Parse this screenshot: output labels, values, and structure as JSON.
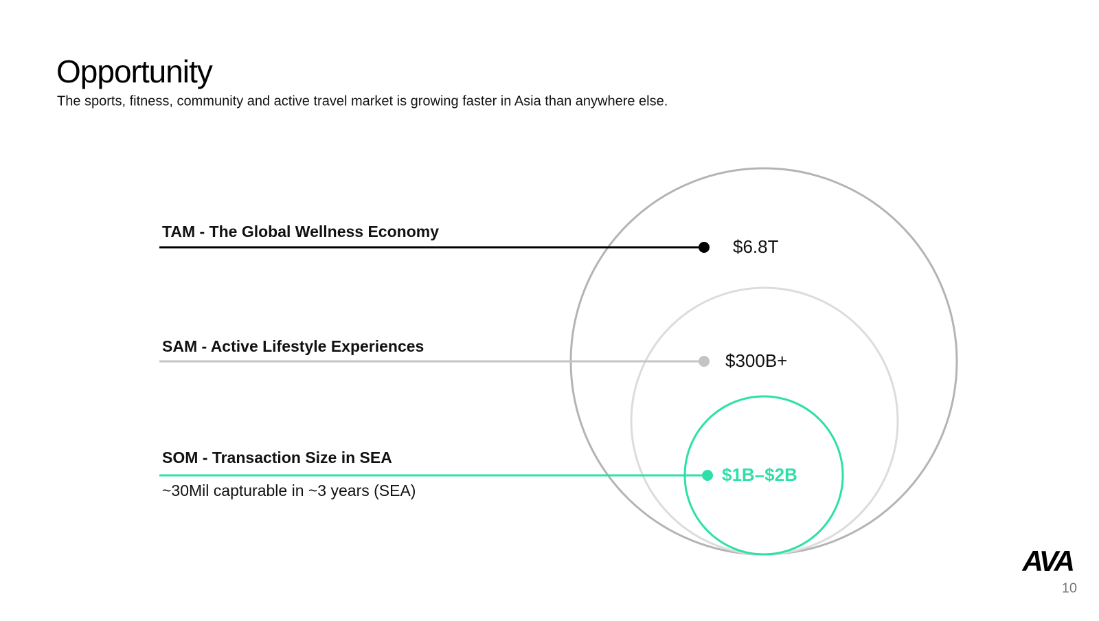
{
  "header": {
    "title": "Opportunity",
    "subtitle": "The sports, fitness, community and active travel market is growing faster in Asia than anywhere else."
  },
  "markets": [
    {
      "label": "TAM - The Global Wellness Economy",
      "value": "$6.8T"
    },
    {
      "label": "SAM - Active Lifestyle Experiences",
      "value": "$300B+"
    },
    {
      "label": "SOM - Transaction Size in SEA",
      "value": "$1B–$2B",
      "note": "~30Mil capturable in ~3 years (SEA)"
    }
  ],
  "footer": {
    "logo": "AVA",
    "page": "10"
  }
}
